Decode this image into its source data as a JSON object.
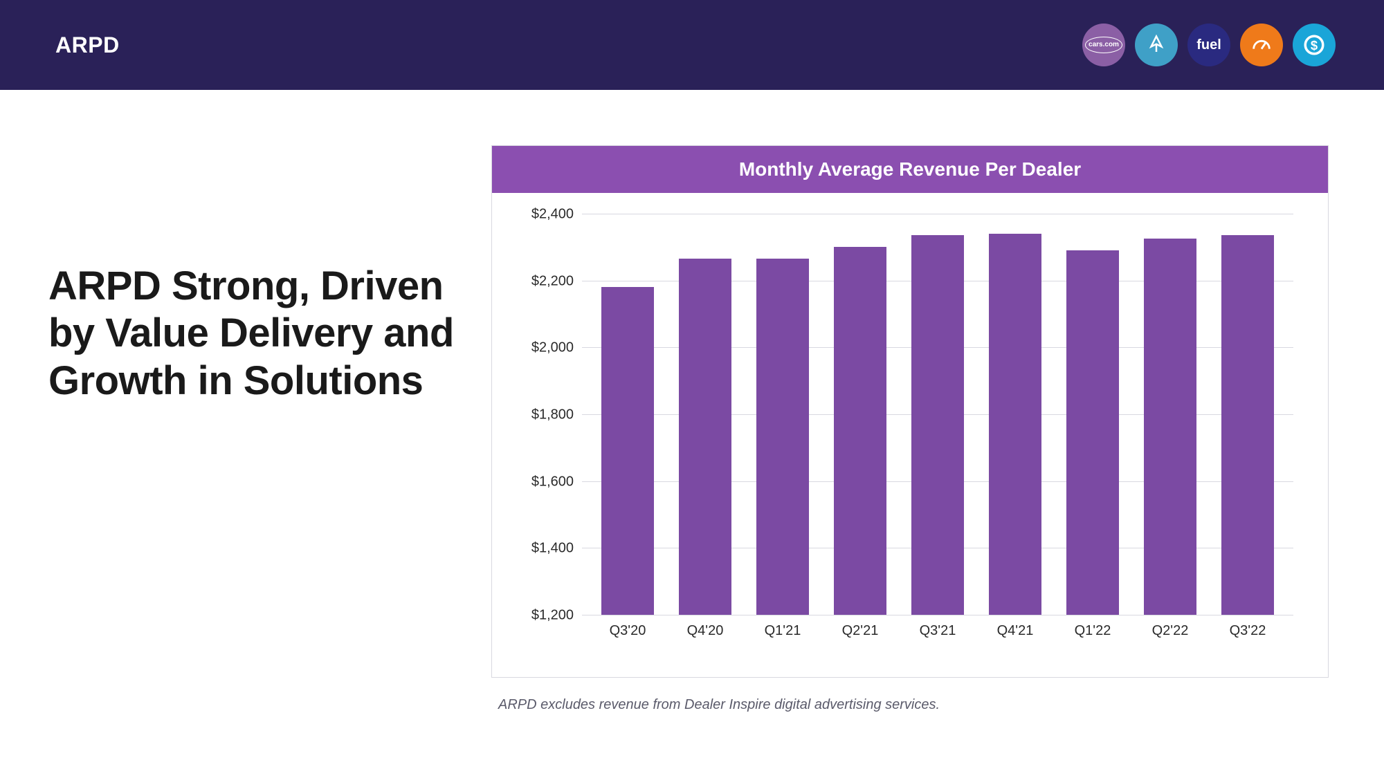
{
  "header": {
    "title": "ARPD",
    "icons": [
      {
        "name": "cars-com-icon",
        "label": "cars.com",
        "bg": "#8b5fa5",
        "type": "text-small"
      },
      {
        "name": "dealer-inspire-icon",
        "label": "",
        "bg": "#3fa0c7",
        "type": "svg-rocket"
      },
      {
        "name": "fuel-icon",
        "label": "fuel",
        "bg": "#2a2a80",
        "type": "text"
      },
      {
        "name": "dealerrater-icon",
        "label": "",
        "bg": "#ef7a1a",
        "type": "svg-gauge"
      },
      {
        "name": "creditiq-icon",
        "label": "",
        "bg": "#1aa5d8",
        "type": "svg-dollar"
      }
    ]
  },
  "headline": "ARPD Strong, Driven by Value Delivery and Growth in Solutions",
  "chart": {
    "type": "bar",
    "title": "Monthly Average Revenue Per Dealer",
    "title_bg": "#8b4fb0",
    "title_color": "#ffffff",
    "title_fontsize": 28,
    "bar_color": "#7b4aa3",
    "grid_color": "#d8d8e0",
    "background_color": "#ffffff",
    "ylim": [
      1200,
      2400
    ],
    "ytick_step": 200,
    "y_ticks": [
      "$1,200",
      "$1,400",
      "$1,600",
      "$1,800",
      "$2,000",
      "$2,200",
      "$2,400"
    ],
    "y_tick_values": [
      1200,
      1400,
      1600,
      1800,
      2000,
      2200,
      2400
    ],
    "categories": [
      "Q3'20",
      "Q4'20",
      "Q1'21",
      "Q2'21",
      "Q3'21",
      "Q4'21",
      "Q1'22",
      "Q2'22",
      "Q3'22"
    ],
    "values": [
      2180,
      2265,
      2265,
      2300,
      2335,
      2340,
      2290,
      2325,
      2335
    ],
    "bar_width": 0.68,
    "label_fontsize": 20
  },
  "footnote": "ARPD excludes revenue from Dealer Inspire digital advertising services."
}
